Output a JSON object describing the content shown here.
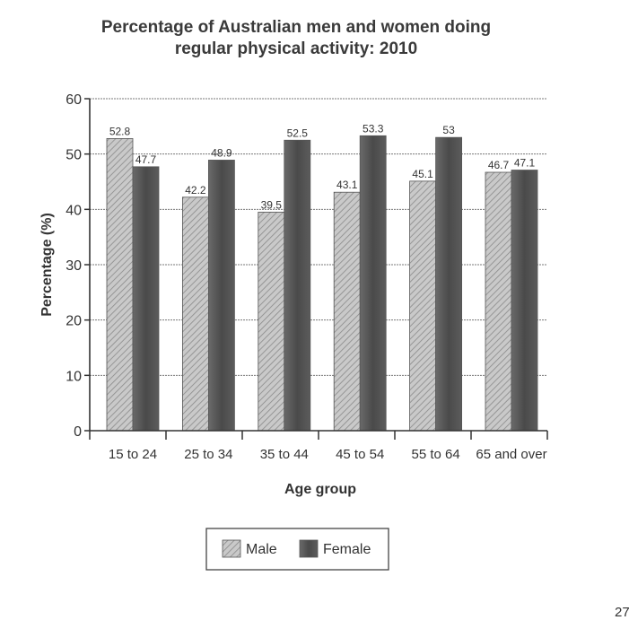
{
  "chart_data": {
    "type": "bar",
    "title_lines": [
      "Percentage of Australian men and women doing",
      "regular physical activity: 2010"
    ],
    "xlabel": "Age group",
    "ylabel": "Percentage (%)",
    "ylim": [
      0,
      60
    ],
    "yticks": [
      0,
      10,
      20,
      30,
      40,
      50,
      60
    ],
    "grid": true,
    "legend_position": "bottom-center",
    "categories": [
      "15 to 24",
      "25 to 34",
      "35 to 44",
      "45 to 54",
      "55 to 64",
      "65 and over"
    ],
    "series": [
      {
        "name": "Male",
        "values": [
          52.8,
          42.2,
          39.5,
          43.1,
          45.1,
          46.7
        ],
        "labels": [
          "52.8",
          "42.2",
          "39.5",
          "43.1",
          "45.1",
          "46.7"
        ],
        "color": "#c4c4c4",
        "pattern": "hatched"
      },
      {
        "name": "Female",
        "values": [
          47.7,
          48.9,
          52.5,
          53.3,
          53,
          47.1
        ],
        "labels": [
          "47.7",
          "48.9",
          "52.5",
          "53.3",
          "53",
          "47.1"
        ],
        "color": "#555555",
        "pattern": "solid"
      }
    ]
  },
  "page_number": "27"
}
